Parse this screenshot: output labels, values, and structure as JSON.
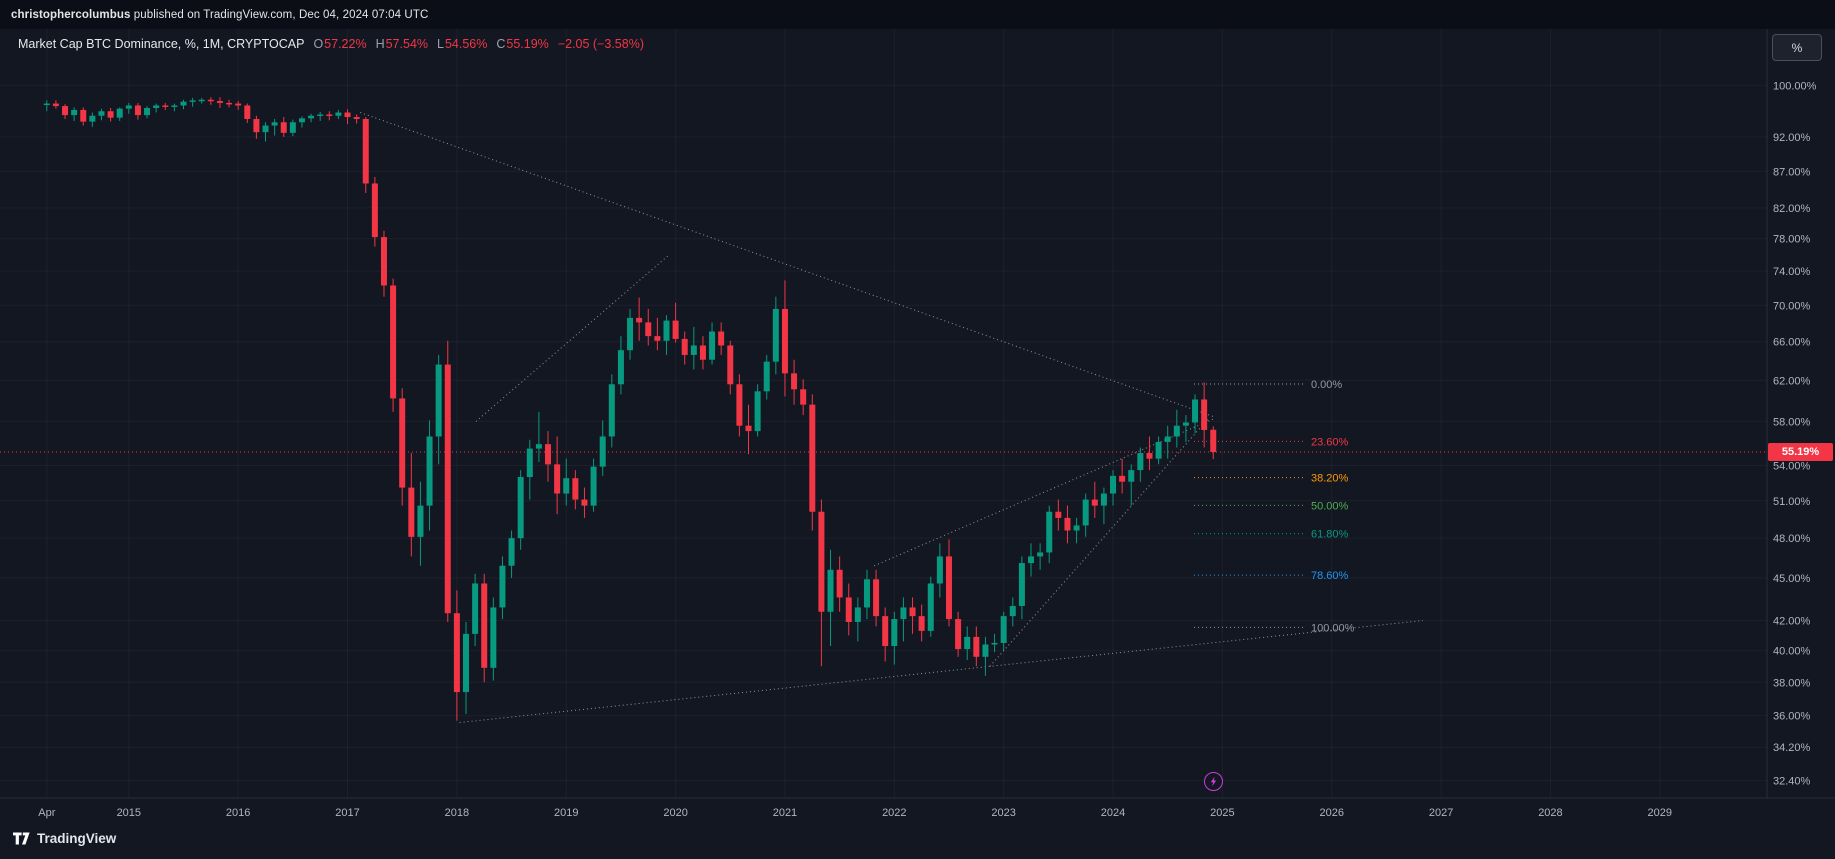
{
  "topbar": {
    "user": "christophercolumbus",
    "rest": " published on TradingView.com, Dec 04, 2024 07:04 UTC"
  },
  "header": {
    "title": "Market Cap BTC Dominance, %, 1M, CRYPTOCAP",
    "o_label": "O",
    "o": "57.22%",
    "h_label": "H",
    "h": "57.54%",
    "l_label": "L",
    "l": "54.56%",
    "c_label": "C",
    "c": "55.19%",
    "change": "−2.05 (−3.58%)"
  },
  "price_axis": {
    "unit_button": "%",
    "current_label": "55.19%"
  },
  "footer": {
    "brand": "TradingView"
  },
  "colors": {
    "background": "#131722",
    "up": "#089981",
    "down": "#f23645",
    "grid": "rgba(151,161,186,0.07)",
    "axis_text": "#b2b5be",
    "axis_border": "#2a2e39",
    "drawing": "rgba(255,255,255,0.55)",
    "price_line": "#f23645"
  },
  "chart_data": {
    "type": "candlestick",
    "title": "Market Cap BTC Dominance, %, 1M, CRYPTOCAP",
    "interval": "1M",
    "scale": "logarithmic percent",
    "start_month": "2014-04",
    "x_axis": {
      "ticks": [
        {
          "label": "Apr",
          "index": 0
        },
        {
          "label": "2015",
          "index": 9
        },
        {
          "label": "2016",
          "index": 21
        },
        {
          "label": "2017",
          "index": 33
        },
        {
          "label": "2018",
          "index": 45
        },
        {
          "label": "2019",
          "index": 57
        },
        {
          "label": "2020",
          "index": 69
        },
        {
          "label": "2021",
          "index": 81
        },
        {
          "label": "2022",
          "index": 93
        },
        {
          "label": "2023",
          "index": 105
        },
        {
          "label": "2024",
          "index": 117
        },
        {
          "label": "2025",
          "index": 129
        },
        {
          "label": "2026",
          "index": 141
        },
        {
          "label": "2027",
          "index": 153
        },
        {
          "label": "2028",
          "index": 165
        },
        {
          "label": "2029",
          "index": 177
        }
      ]
    },
    "y_axis": {
      "ticks": [
        {
          "label": "100.00%",
          "value": 100
        },
        {
          "label": "92.00%",
          "value": 92
        },
        {
          "label": "87.00%",
          "value": 87
        },
        {
          "label": "82.00%",
          "value": 82
        },
        {
          "label": "78.00%",
          "value": 78
        },
        {
          "label": "74.00%",
          "value": 74
        },
        {
          "label": "70.00%",
          "value": 70
        },
        {
          "label": "66.00%",
          "value": 66
        },
        {
          "label": "62.00%",
          "value": 62
        },
        {
          "label": "58.00%",
          "value": 58
        },
        {
          "label": "54.00%",
          "value": 54
        },
        {
          "label": "51.00%",
          "value": 51
        },
        {
          "label": "48.00%",
          "value": 48
        },
        {
          "label": "45.00%",
          "value": 45
        },
        {
          "label": "42.00%",
          "value": 42
        },
        {
          "label": "40.00%",
          "value": 40
        },
        {
          "label": "38.00%",
          "value": 38
        },
        {
          "label": "36.00%",
          "value": 36
        },
        {
          "label": "34.20%",
          "value": 34.2
        },
        {
          "label": "32.40%",
          "value": 32.4
        }
      ]
    },
    "candles": [
      [
        96.9,
        97.6,
        95.9,
        97.1
      ],
      [
        97.1,
        97.6,
        96.3,
        96.7
      ],
      [
        96.7,
        97.0,
        94.7,
        95.3
      ],
      [
        95.3,
        96.5,
        94.4,
        96.1
      ],
      [
        96.1,
        96.5,
        93.7,
        94.3
      ],
      [
        94.3,
        95.7,
        93.5,
        95.2
      ],
      [
        95.2,
        96.3,
        94.5,
        95.9
      ],
      [
        95.9,
        96.4,
        94.3,
        94.9
      ],
      [
        94.9,
        96.5,
        94.4,
        96.3
      ],
      [
        96.3,
        97.2,
        95.5,
        96.8
      ],
      [
        96.8,
        97.2,
        94.6,
        95.3
      ],
      [
        95.3,
        96.7,
        94.8,
        96.4
      ],
      [
        96.4,
        97.1,
        95.7,
        96.8
      ],
      [
        96.8,
        97.2,
        96.1,
        96.6
      ],
      [
        96.6,
        97.1,
        95.9,
        96.8
      ],
      [
        96.8,
        97.7,
        96.2,
        97.4
      ],
      [
        97.4,
        98.0,
        96.6,
        97.6
      ],
      [
        97.6,
        98.0,
        97.1,
        97.7
      ],
      [
        97.7,
        98.1,
        96.9,
        97.5
      ],
      [
        97.5,
        98.1,
        96.4,
        97.2
      ],
      [
        97.2,
        97.7,
        96.5,
        97.1
      ],
      [
        97.1,
        97.5,
        96.1,
        96.8
      ],
      [
        96.8,
        97.1,
        94.1,
        94.7
      ],
      [
        94.7,
        95.2,
        91.7,
        92.7
      ],
      [
        92.7,
        94.2,
        91.3,
        93.7
      ],
      [
        93.7,
        94.7,
        92.2,
        94.2
      ],
      [
        94.2,
        95.0,
        92.0,
        92.6
      ],
      [
        92.6,
        94.6,
        92.1,
        94.2
      ],
      [
        94.2,
        95.1,
        93.4,
        94.8
      ],
      [
        94.8,
        95.5,
        94.2,
        95.2
      ],
      [
        95.2,
        95.8,
        94.4,
        95.4
      ],
      [
        95.4,
        95.9,
        94.5,
        95.2
      ],
      [
        95.2,
        96.1,
        94.7,
        95.7
      ],
      [
        95.7,
        96.2,
        93.9,
        95.0
      ],
      [
        95.0,
        95.4,
        94.0,
        94.7
      ],
      [
        94.7,
        95.0,
        84.0,
        85.3
      ],
      [
        85.3,
        86.2,
        77.0,
        78.2
      ],
      [
        78.2,
        79.0,
        71.0,
        72.3
      ],
      [
        72.3,
        73.1,
        58.9,
        60.2
      ],
      [
        60.2,
        61.2,
        50.6,
        52.1
      ],
      [
        52.1,
        55.1,
        46.6,
        48.1
      ],
      [
        48.1,
        52.6,
        45.9,
        50.6
      ],
      [
        50.6,
        58.1,
        48.6,
        56.6
      ],
      [
        56.6,
        64.6,
        54.1,
        63.6
      ],
      [
        63.6,
        66.1,
        41.9,
        42.5
      ],
      [
        42.5,
        44.1,
        35.7,
        37.4
      ],
      [
        37.4,
        41.9,
        36.1,
        41.1
      ],
      [
        41.1,
        45.3,
        40.3,
        44.6
      ],
      [
        44.6,
        45.3,
        38.0,
        38.9
      ],
      [
        38.9,
        43.6,
        38.1,
        42.9
      ],
      [
        42.9,
        46.6,
        42.1,
        45.9
      ],
      [
        45.9,
        48.6,
        45.0,
        48.0
      ],
      [
        48.0,
        53.6,
        47.1,
        53.0
      ],
      [
        53.0,
        56.3,
        51.1,
        55.5
      ],
      [
        55.5,
        58.9,
        54.3,
        55.9
      ],
      [
        55.9,
        57.1,
        52.6,
        54.1
      ],
      [
        54.1,
        56.6,
        49.9,
        51.6
      ],
      [
        51.6,
        54.6,
        50.6,
        52.9
      ],
      [
        52.9,
        53.6,
        50.3,
        51.1
      ],
      [
        51.1,
        52.1,
        49.6,
        50.6
      ],
      [
        50.6,
        54.6,
        50.1,
        53.9
      ],
      [
        53.9,
        58.1,
        53.1,
        56.6
      ],
      [
        56.6,
        62.6,
        55.6,
        61.6
      ],
      [
        61.6,
        66.6,
        60.6,
        65.1
      ],
      [
        65.1,
        69.6,
        64.1,
        68.6
      ],
      [
        68.6,
        70.9,
        66.1,
        68.1
      ],
      [
        68.1,
        69.6,
        65.6,
        66.6
      ],
      [
        66.6,
        68.6,
        65.1,
        66.1
      ],
      [
        66.1,
        68.9,
        64.6,
        68.3
      ],
      [
        68.3,
        70.3,
        65.9,
        66.3
      ],
      [
        66.3,
        67.1,
        63.6,
        64.6
      ],
      [
        64.6,
        67.6,
        63.1,
        65.6
      ],
      [
        65.6,
        66.6,
        63.1,
        64.1
      ],
      [
        64.1,
        68.1,
        63.6,
        67.1
      ],
      [
        67.1,
        68.1,
        64.6,
        65.6
      ],
      [
        65.6,
        66.1,
        60.6,
        61.6
      ],
      [
        61.6,
        62.6,
        56.6,
        57.6
      ],
      [
        57.6,
        59.6,
        55.0,
        57.1
      ],
      [
        57.1,
        61.6,
        56.6,
        60.9
      ],
      [
        60.9,
        64.6,
        60.1,
        63.9
      ],
      [
        63.9,
        71.0,
        62.6,
        69.6
      ],
      [
        69.6,
        72.9,
        60.4,
        62.7
      ],
      [
        62.7,
        64.1,
        59.6,
        61.1
      ],
      [
        61.1,
        62.1,
        58.6,
        59.6
      ],
      [
        59.6,
        60.6,
        48.6,
        50.1
      ],
      [
        50.1,
        51.1,
        39.0,
        42.6
      ],
      [
        42.6,
        47.1,
        40.3,
        45.6
      ],
      [
        45.6,
        46.6,
        42.6,
        43.6
      ],
      [
        43.6,
        44.6,
        41.0,
        41.9
      ],
      [
        41.9,
        43.6,
        40.6,
        42.9
      ],
      [
        42.9,
        45.6,
        42.1,
        44.9
      ],
      [
        44.9,
        45.6,
        41.6,
        42.3
      ],
      [
        42.3,
        42.9,
        39.3,
        40.3
      ],
      [
        40.3,
        42.6,
        39.1,
        42.1
      ],
      [
        42.1,
        43.6,
        40.6,
        42.9
      ],
      [
        42.9,
        43.6,
        41.1,
        42.3
      ],
      [
        42.3,
        43.1,
        40.6,
        41.3
      ],
      [
        41.3,
        45.1,
        40.9,
        44.6
      ],
      [
        44.6,
        47.6,
        43.6,
        46.6
      ],
      [
        46.6,
        47.9,
        41.6,
        42.1
      ],
      [
        42.1,
        42.6,
        39.6,
        40.1
      ],
      [
        40.1,
        41.6,
        39.4,
        40.9
      ],
      [
        40.9,
        41.6,
        39.0,
        39.6
      ],
      [
        39.6,
        40.9,
        38.4,
        40.4
      ],
      [
        40.4,
        41.1,
        39.9,
        40.5
      ],
      [
        40.5,
        42.6,
        40.0,
        42.3
      ],
      [
        42.3,
        43.6,
        41.6,
        43.0
      ],
      [
        43.0,
        46.6,
        42.1,
        46.1
      ],
      [
        46.1,
        47.6,
        45.1,
        46.6
      ],
      [
        46.6,
        47.6,
        45.6,
        46.9
      ],
      [
        46.9,
        50.6,
        46.1,
        50.1
      ],
      [
        50.1,
        51.1,
        48.6,
        49.6
      ],
      [
        49.6,
        50.6,
        47.6,
        48.6
      ],
      [
        48.6,
        49.6,
        47.6,
        49.0
      ],
      [
        49.0,
        51.6,
        48.1,
        51.1
      ],
      [
        51.1,
        52.6,
        49.6,
        50.6
      ],
      [
        50.6,
        52.1,
        49.1,
        51.6
      ],
      [
        51.6,
        53.6,
        50.6,
        53.1
      ],
      [
        53.1,
        54.6,
        51.6,
        52.6
      ],
      [
        52.6,
        54.1,
        50.6,
        53.6
      ],
      [
        53.6,
        55.6,
        52.6,
        55.1
      ],
      [
        55.1,
        56.6,
        53.6,
        54.6
      ],
      [
        54.6,
        56.6,
        54.1,
        56.1
      ],
      [
        56.1,
        57.6,
        54.6,
        56.6
      ],
      [
        56.6,
        59.1,
        55.6,
        57.6
      ],
      [
        57.6,
        58.6,
        56.1,
        57.9
      ],
      [
        57.9,
        60.6,
        56.9,
        60.1
      ],
      [
        60.1,
        61.8,
        55.6,
        57.2
      ],
      [
        57.22,
        57.54,
        54.56,
        55.19
      ]
    ],
    "last_bar": {
      "open": 57.22,
      "high": 57.54,
      "low": 54.56,
      "close": 55.19,
      "change": -2.05,
      "change_pct": -3.58
    },
    "price_line": {
      "value": 55.19,
      "label": "55.19%",
      "color": "#f23645"
    },
    "fib_retracement": {
      "high": 61.63,
      "low": 41.54,
      "levels": [
        {
          "label": "0.00%",
          "value": 61.63,
          "color": "#9598a1"
        },
        {
          "label": "23.60%",
          "value": 56.15,
          "color": "#f23645"
        },
        {
          "label": "38.20%",
          "value": 52.95,
          "color": "#ff9800"
        },
        {
          "label": "50.00%",
          "value": 50.62,
          "color": "#4caf50"
        },
        {
          "label": "61.80%",
          "value": 48.35,
          "color": "#089981"
        },
        {
          "label": "78.60%",
          "value": 45.21,
          "color": "#2196f3"
        },
        {
          "label": "100.00%",
          "value": 41.54,
          "color": "#9598a1"
        }
      ]
    },
    "trendlines": [
      {
        "i1": 34.4,
        "p1": 95.7,
        "i2": 128.2,
        "p2": 58.4
      },
      {
        "i1": 47.1,
        "p1": 58.0,
        "i2": 68.2,
        "p2": 75.9
      },
      {
        "i1": 45.3,
        "p1": 35.6,
        "i2": 151.0,
        "p2": 42.0
      },
      {
        "i1": 90.8,
        "p1": 45.9,
        "i2": 128.2,
        "p2": 58.3
      },
      {
        "i1": 103.5,
        "p1": 39.0,
        "i2": 127.4,
        "p2": 58.2
      }
    ]
  }
}
